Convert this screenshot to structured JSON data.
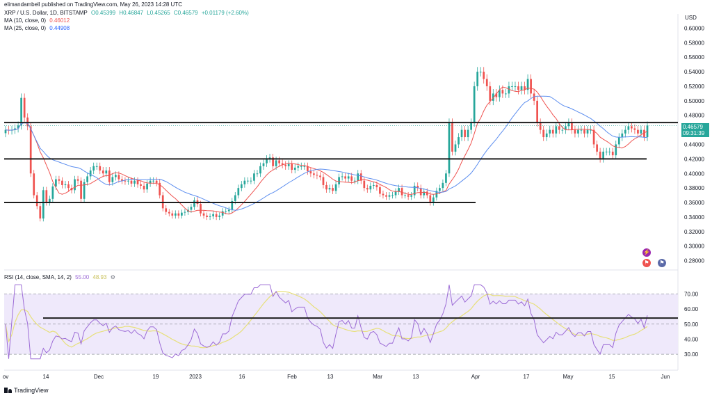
{
  "header": {
    "publisher_line": "elimandambell published on TradingView.com, May 26, 2023 14:28 UTC"
  },
  "legend": {
    "symbol": "XRP / U.S. Dollar, 1D, BITSTAMP",
    "open": "O0.45399",
    "high": "H0.46847",
    "low": "L0.45265",
    "close": "C0.46579",
    "change": "+0.01179 (+2.60%)",
    "ma10_label": "MA (10, close, 0)",
    "ma10_value": "0.46012",
    "ma25_label": "MA (25, close, 0)",
    "ma25_value": "0.44908",
    "rsi_label": "RSI (14, close, SMA, 14, 2)",
    "rsi_value": "55.00",
    "rsi_ma_value": "48.93"
  },
  "price_axis": {
    "currency": "USD",
    "ticks": [
      "0.60000",
      "0.58000",
      "0.56000",
      "0.54000",
      "0.52000",
      "0.50000",
      "0.48000",
      "0.46000",
      "0.44000",
      "0.42000",
      "0.40000",
      "0.38000",
      "0.36000",
      "0.34000",
      "0.32000",
      "0.30000",
      "0.28000"
    ],
    "current_price": "0.46579",
    "countdown": "09:31:39"
  },
  "rsi_axis": {
    "ticks": [
      "70.00",
      "60.00",
      "50.00",
      "40.00",
      "30.00"
    ]
  },
  "time_axis": {
    "ticks": [
      "ov",
      "14",
      "Dec",
      "19",
      "2023",
      "16",
      "Feb",
      "13",
      "Mar",
      "13",
      "Apr",
      "17",
      "May",
      "15",
      "Jun"
    ]
  },
  "footer": {
    "brand": "TradingView"
  },
  "colors": {
    "up": "#26a69a",
    "down": "#ef5350",
    "ma10": "#ef5350",
    "ma25": "#5b8def",
    "rsi": "#9c6bd6",
    "rsi_ma": "#e7e07a",
    "rsi_band": "#efe9fb",
    "levels": "#1e1e1e"
  },
  "chart_data": [
    {
      "type": "candlestick",
      "title": "XRP / U.S. Dollar, 1D, BITSTAMP",
      "ylabel": "USD",
      "ylim": [
        0.27,
        0.61
      ],
      "x_range": [
        "2022-11-01",
        "2023-05-26"
      ],
      "price_series_daily_close": [
        0.46,
        0.459,
        0.46,
        0.462,
        0.466,
        0.504,
        0.477,
        0.465,
        0.4,
        0.37,
        0.355,
        0.338,
        0.377,
        0.36,
        0.365,
        0.382,
        0.392,
        0.39,
        0.384,
        0.385,
        0.38,
        0.377,
        0.392,
        0.39,
        0.365,
        0.388,
        0.396,
        0.404,
        0.41,
        0.41,
        0.404,
        0.4,
        0.404,
        0.388,
        0.395,
        0.398,
        0.392,
        0.39,
        0.389,
        0.39,
        0.386,
        0.39,
        0.385,
        0.383,
        0.378,
        0.386,
        0.39,
        0.39,
        0.387,
        0.37,
        0.352,
        0.347,
        0.345,
        0.342,
        0.345,
        0.342,
        0.346,
        0.347,
        0.35,
        0.354,
        0.363,
        0.358,
        0.345,
        0.342,
        0.34,
        0.341,
        0.344,
        0.34,
        0.342,
        0.348,
        0.348,
        0.35,
        0.362,
        0.37,
        0.38,
        0.385,
        0.39,
        0.39,
        0.39,
        0.4,
        0.4,
        0.41,
        0.414,
        0.42,
        0.422,
        0.41,
        0.418,
        0.414,
        0.412,
        0.41,
        0.413,
        0.405,
        0.408,
        0.41,
        0.41,
        0.41,
        0.403,
        0.4,
        0.398,
        0.397,
        0.395,
        0.384,
        0.378,
        0.38,
        0.376,
        0.385,
        0.395,
        0.396,
        0.393,
        0.396,
        0.39,
        0.39,
        0.4,
        0.39,
        0.38,
        0.378,
        0.383,
        0.384,
        0.381,
        0.372,
        0.37,
        0.368,
        0.37,
        0.37,
        0.375,
        0.38,
        0.37,
        0.37,
        0.368,
        0.37,
        0.383,
        0.38,
        0.37,
        0.375,
        0.37,
        0.36,
        0.367,
        0.376,
        0.38,
        0.387,
        0.4,
        0.47,
        0.43,
        0.44,
        0.45,
        0.46,
        0.45,
        0.46,
        0.47,
        0.52,
        0.54,
        0.54,
        0.53,
        0.52,
        0.5,
        0.51,
        0.505,
        0.515,
        0.51,
        0.51,
        0.52,
        0.52,
        0.52,
        0.515,
        0.52,
        0.515,
        0.53,
        0.51,
        0.5,
        0.47,
        0.46,
        0.45,
        0.455,
        0.46,
        0.455,
        0.465,
        0.46,
        0.46,
        0.465,
        0.47,
        0.46,
        0.455,
        0.46,
        0.46,
        0.455,
        0.46,
        0.46,
        0.44,
        0.43,
        0.42,
        0.43,
        0.43,
        0.43,
        0.425,
        0.44,
        0.45,
        0.455,
        0.46,
        0.465,
        0.462,
        0.46,
        0.455,
        0.46,
        0.45,
        0.466
      ],
      "last_close": 0.46579,
      "ma10_last": 0.46012,
      "ma25_last": 0.44908
    },
    {
      "type": "line",
      "title": "RSI (14, close, SMA, 14, 2)",
      "ylim": [
        25,
        78
      ],
      "hlines": [
        70,
        50,
        30
      ],
      "rsi_last": 55.0,
      "rsi_ma_last": 48.93
    }
  ],
  "drawn_levels": [
    {
      "name": "upper-resistance",
      "y": 0.47
    },
    {
      "name": "middle-support",
      "y": 0.42
    },
    {
      "name": "lower-support",
      "y": 0.36
    },
    {
      "name": "rsi-level",
      "y": 54
    }
  ]
}
